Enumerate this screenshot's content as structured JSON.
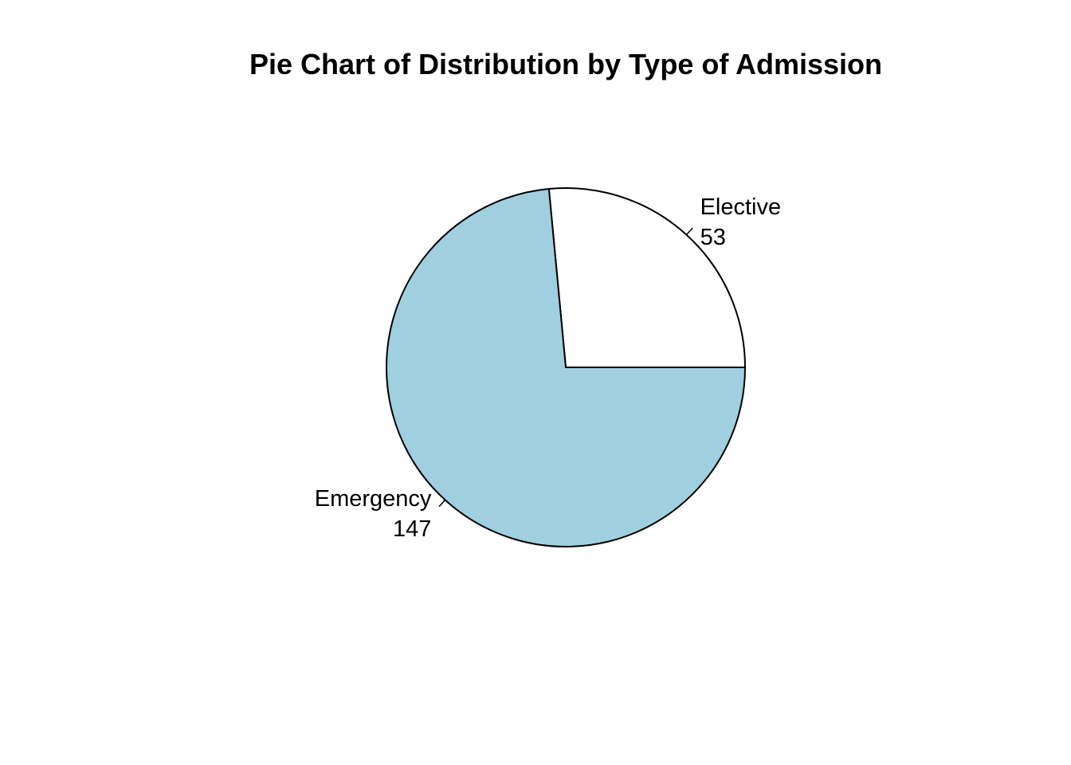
{
  "chart_data": {
    "type": "pie",
    "title": "Pie Chart of Distribution by Type of Admission",
    "categories": [
      "Elective",
      "Emergency"
    ],
    "values": [
      53,
      147
    ],
    "value_labels": [
      "53",
      "147"
    ],
    "colors": [
      "#ffffff",
      "#a0cfe0"
    ],
    "start_angle_deg": 0,
    "direction": "counterclockwise",
    "border_color": "#000000",
    "legend": "none"
  }
}
